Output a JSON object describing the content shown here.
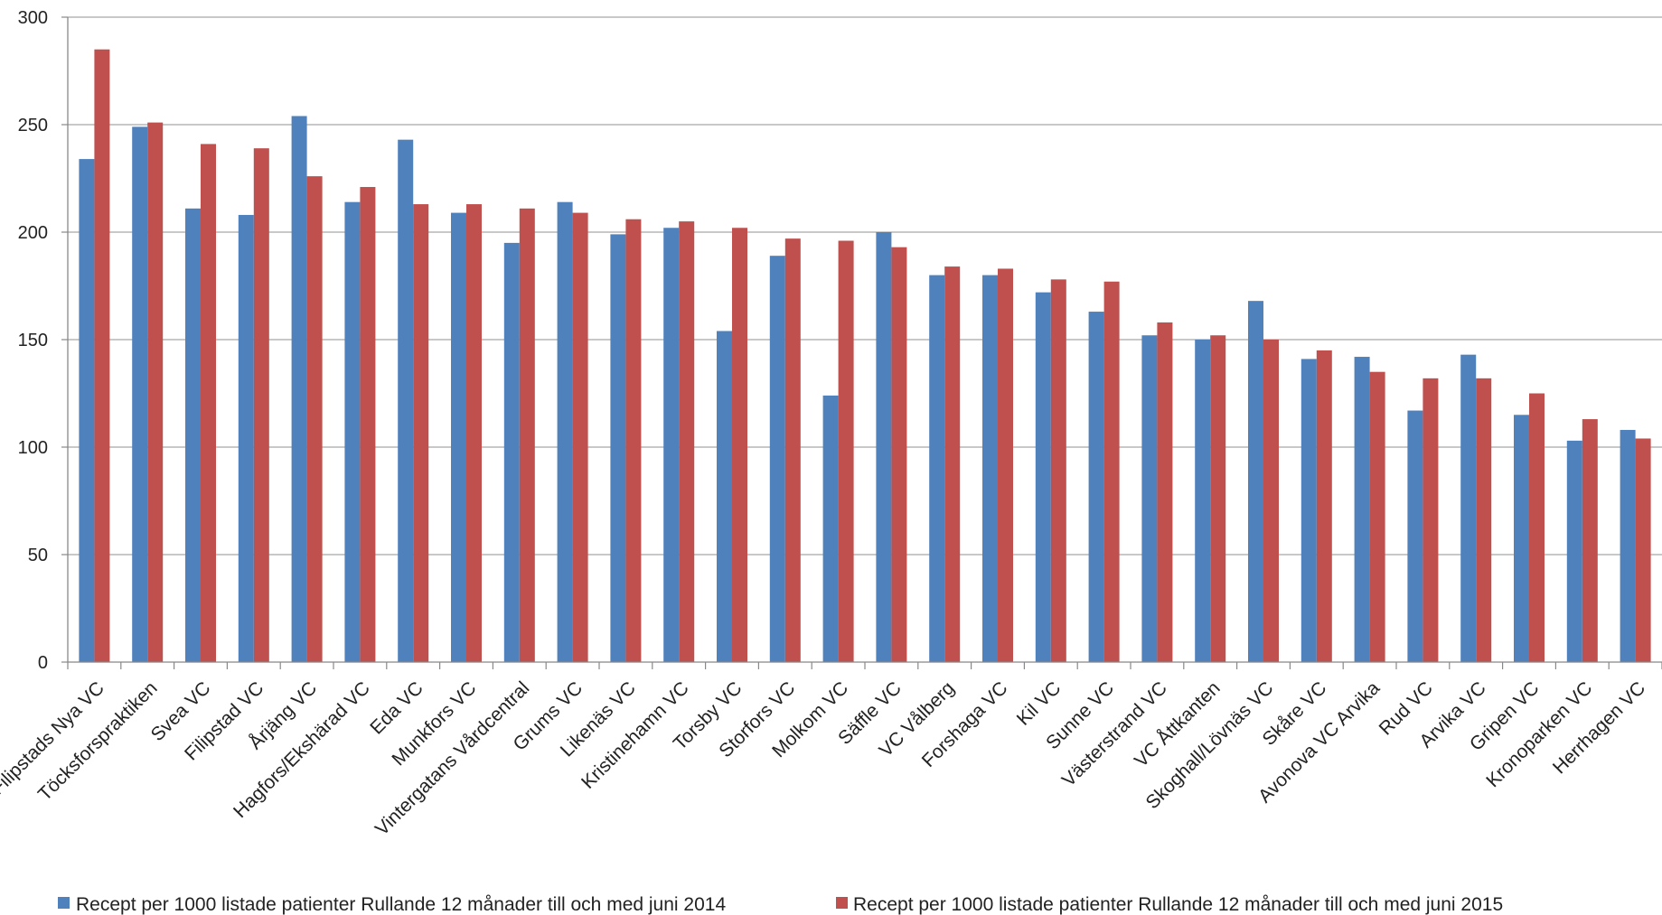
{
  "chart_data": {
    "type": "bar",
    "title": "",
    "xlabel": "",
    "ylabel": "",
    "ylim": [
      0,
      300
    ],
    "yticks": [
      0,
      50,
      100,
      150,
      200,
      250,
      300
    ],
    "grid": true,
    "legend_position": "bottom",
    "categories": [
      "Filipstads Nya VC",
      "Töcksforspraktiken",
      "Svea VC",
      "Filipstad VC",
      "Årjäng VC",
      "Hagfors/Ekshärad VC",
      "Eda VC",
      "Munkfors VC",
      "Vintergatans Vårdcentral",
      "Grums VC",
      "Likenäs VC",
      "Kristinehamn VC",
      "Torsby VC",
      "Storfors VC",
      "Molkom VC",
      "Säffle VC",
      "VC Vålberg",
      "Forshaga VC",
      "Kil VC",
      "Sunne VC",
      "Västerstrand VC",
      "VC Åttkanten",
      "Skoghall/Lövnäs VC",
      "Skåre VC",
      "Avonova VC Arvika",
      "Rud VC",
      "Arvika VC",
      "Gripen VC",
      "Kronoparken VC",
      "Herrhagen VC"
    ],
    "series": [
      {
        "name": "Recept per 1000 listade patienter Rullande 12 månader till och med juni 2014",
        "color": "#4F81BD",
        "values": [
          234,
          249,
          211,
          208,
          254,
          214,
          243,
          209,
          195,
          214,
          199,
          202,
          154,
          189,
          124,
          200,
          180,
          180,
          172,
          163,
          152,
          150,
          168,
          141,
          142,
          117,
          143,
          115,
          103,
          108
        ]
      },
      {
        "name": "Recept per 1000 listade patienter Rullande 12 månader till och med juni 2015",
        "color": "#C0504D",
        "values": [
          285,
          251,
          241,
          239,
          226,
          221,
          213,
          213,
          211,
          209,
          206,
          205,
          202,
          197,
          196,
          193,
          184,
          183,
          178,
          177,
          158,
          152,
          150,
          145,
          135,
          132,
          132,
          125,
          113,
          104
        ]
      }
    ]
  }
}
